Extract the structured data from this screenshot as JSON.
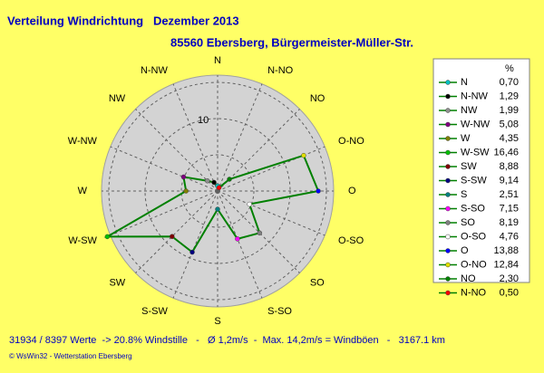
{
  "chart_data": {
    "type": "radar",
    "title": "Verteilung Windrichtung   Dezember 2013",
    "subtitle": "85560 Ebersberg, Bürgermeister-Müller-Str.",
    "categories": [
      "N",
      "N-NO",
      "NO",
      "O-NO",
      "O",
      "O-SO",
      "SO",
      "S-SO",
      "S",
      "S-SW",
      "SW",
      "W-SW",
      "W",
      "W-NW",
      "NW",
      "N-NW"
    ],
    "values": [
      0.7,
      0.5,
      2.3,
      12.84,
      13.88,
      4.76,
      8.19,
      7.15,
      2.51,
      9.14,
      8.88,
      16.46,
      4.35,
      5.08,
      1.99,
      1.29
    ],
    "point_colors": [
      "#00c0c0",
      "#ff0000",
      "#008000",
      "#e0e000",
      "#0000ff",
      "#ffffff",
      "#808080",
      "#ff00ff",
      "#008080",
      "#000080",
      "#800000",
      "#00c000",
      "#808000",
      "#800080",
      "#909090",
      "#000000"
    ],
    "color": "#008000",
    "rlim": [
      0,
      16
    ],
    "rticks": [
      10
    ],
    "rgrid": [
      5,
      10,
      15
    ],
    "legend": {
      "header": "%",
      "entries": [
        {
          "name": "N",
          "color": "#00c0c0",
          "value": 0.7,
          "value_label": "0,70"
        },
        {
          "name": "N-NW",
          "color": "#000000",
          "value": 1.29,
          "value_label": "1,29"
        },
        {
          "name": "NW",
          "color": "#909090",
          "value": 1.99,
          "value_label": "1,99"
        },
        {
          "name": "W-NW",
          "color": "#800080",
          "value": 5.08,
          "value_label": "5,08"
        },
        {
          "name": "W",
          "color": "#808000",
          "value": 4.35,
          "value_label": "4,35"
        },
        {
          "name": "W-SW",
          "color": "#00c000",
          "value": 16.46,
          "value_label": "16,46"
        },
        {
          "name": "SW",
          "color": "#800000",
          "value": 8.88,
          "value_label": "8,88"
        },
        {
          "name": "S-SW",
          "color": "#000080",
          "value": 9.14,
          "value_label": "9,14"
        },
        {
          "name": "S",
          "color": "#008080",
          "value": 2.51,
          "value_label": "2,51"
        },
        {
          "name": "S-SO",
          "color": "#ff00ff",
          "value": 7.15,
          "value_label": "7,15"
        },
        {
          "name": "SO",
          "color": "#808080",
          "value": 8.19,
          "value_label": "8,19"
        },
        {
          "name": "O-SO",
          "color": "#ffffff",
          "value": 4.76,
          "value_label": "4,76"
        },
        {
          "name": "O",
          "color": "#0000ff",
          "value": 13.88,
          "value_label": "13,88"
        },
        {
          "name": "O-NO",
          "color": "#e0e000",
          "value": 12.84,
          "value_label": "12,84"
        },
        {
          "name": "NO",
          "color": "#008000",
          "value": 2.3,
          "value_label": "2,30"
        },
        {
          "name": "N-NO",
          "color": "#ff0000",
          "value": 0.5,
          "value_label": "0,50"
        }
      ]
    },
    "footer": "31934 / 8397 Werte  -> 20.8% Windstille   -   Ø 1,2m/s  -  Max. 14,2m/s = Windböen   -   3167.1 km",
    "credit": "© WsWin32  -  Wetterstation Ebersberg"
  }
}
